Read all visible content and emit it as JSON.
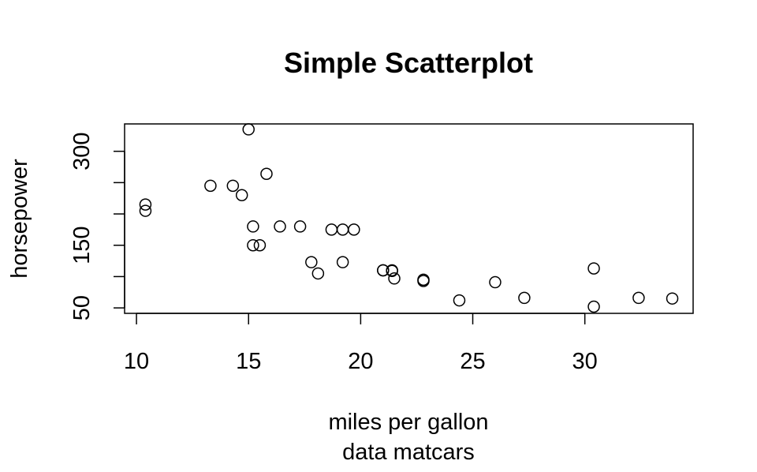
{
  "chart_data": {
    "type": "scatter",
    "title": "Simple Scatterplot",
    "xlabel": "miles per gallon",
    "sub": "data matcars",
    "ylabel": "horsepower",
    "xticks": [
      10,
      15,
      20,
      25,
      30
    ],
    "xtick_labels": [
      "10",
      "15",
      "20",
      "25",
      "30"
    ],
    "yticks": [
      50,
      100,
      150,
      200,
      250,
      300
    ],
    "ytick_labels": [
      "50",
      "",
      "150",
      "",
      "",
      "300"
    ],
    "xlim": [
      9.47,
      34.83
    ],
    "ylim": [
      41.3,
      343.7
    ],
    "grid": false,
    "legend": "none",
    "marker": "open-circle",
    "points": [
      {
        "x": 21.0,
        "y": 110
      },
      {
        "x": 21.0,
        "y": 110
      },
      {
        "x": 22.8,
        "y": 93
      },
      {
        "x": 21.4,
        "y": 110
      },
      {
        "x": 18.7,
        "y": 175
      },
      {
        "x": 18.1,
        "y": 105
      },
      {
        "x": 14.3,
        "y": 245
      },
      {
        "x": 24.4,
        "y": 62
      },
      {
        "x": 22.8,
        "y": 95
      },
      {
        "x": 19.2,
        "y": 123
      },
      {
        "x": 17.8,
        "y": 123
      },
      {
        "x": 16.4,
        "y": 180
      },
      {
        "x": 17.3,
        "y": 180
      },
      {
        "x": 15.2,
        "y": 180
      },
      {
        "x": 10.4,
        "y": 205
      },
      {
        "x": 10.4,
        "y": 215
      },
      {
        "x": 14.7,
        "y": 230
      },
      {
        "x": 32.4,
        "y": 66
      },
      {
        "x": 30.4,
        "y": 52
      },
      {
        "x": 33.9,
        "y": 65
      },
      {
        "x": 21.5,
        "y": 97
      },
      {
        "x": 15.5,
        "y": 150
      },
      {
        "x": 15.2,
        "y": 150
      },
      {
        "x": 13.3,
        "y": 245
      },
      {
        "x": 19.2,
        "y": 175
      },
      {
        "x": 27.3,
        "y": 66
      },
      {
        "x": 26.0,
        "y": 91
      },
      {
        "x": 30.4,
        "y": 113
      },
      {
        "x": 15.8,
        "y": 264
      },
      {
        "x": 19.7,
        "y": 175
      },
      {
        "x": 15.0,
        "y": 335
      },
      {
        "x": 21.4,
        "y": 109
      }
    ]
  }
}
